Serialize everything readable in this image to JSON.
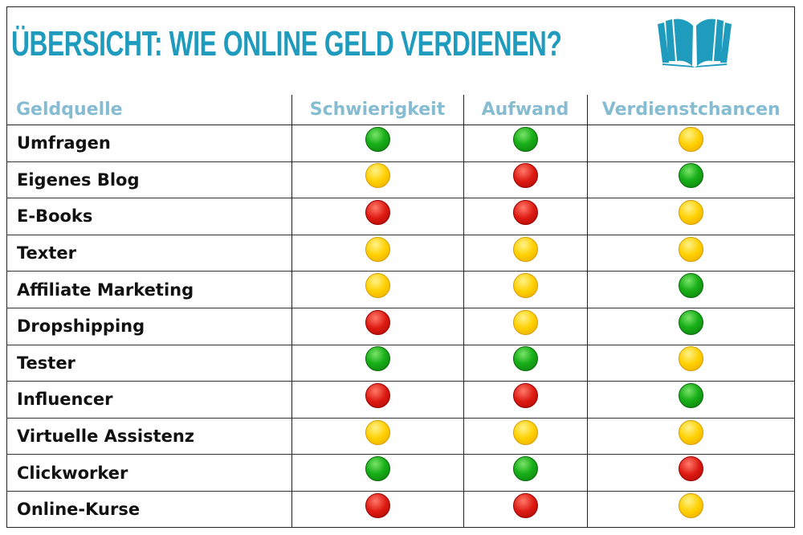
{
  "title": "ÜBERSICHT: WIE ONLINE GELD VERDIENEN?",
  "logo_icon": "open-book-icon",
  "colors": {
    "title": "#1e9bbd",
    "header": "#86bcd2",
    "green": "#19b019",
    "yellow": "#ffd000",
    "red": "#dd1a12"
  },
  "columns": [
    "Geldquelle",
    "Schwierigkeit",
    "Aufwand",
    "Verdienstchancen"
  ],
  "rows": [
    {
      "name": "Umfragen",
      "ratings": [
        "green",
        "green",
        "yellow"
      ]
    },
    {
      "name": "Eigenes Blog",
      "ratings": [
        "yellow",
        "red",
        "green"
      ]
    },
    {
      "name": "E-Books",
      "ratings": [
        "red",
        "red",
        "yellow"
      ]
    },
    {
      "name": "Texter",
      "ratings": [
        "yellow",
        "yellow",
        "yellow"
      ]
    },
    {
      "name": "Affiliate Marketing",
      "ratings": [
        "yellow",
        "yellow",
        "green"
      ]
    },
    {
      "name": "Dropshipping",
      "ratings": [
        "red",
        "yellow",
        "green"
      ]
    },
    {
      "name": "Tester",
      "ratings": [
        "green",
        "green",
        "yellow"
      ]
    },
    {
      "name": "Influencer",
      "ratings": [
        "red",
        "red",
        "green"
      ]
    },
    {
      "name": "Virtuelle Assistenz",
      "ratings": [
        "yellow",
        "yellow",
        "yellow"
      ]
    },
    {
      "name": "Clickworker",
      "ratings": [
        "green",
        "green",
        "red"
      ]
    },
    {
      "name": "Online-Kurse",
      "ratings": [
        "red",
        "red",
        "yellow"
      ]
    }
  ]
}
